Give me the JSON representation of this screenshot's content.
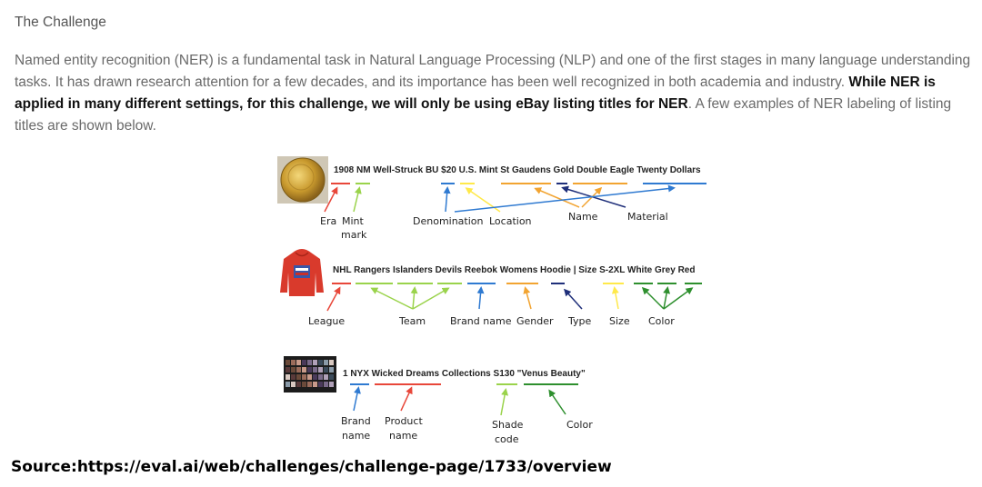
{
  "heading": "The Challenge",
  "paragraph": {
    "part1": "Named entity recognition (NER) is a fundamental task in Natural Language Processing (NLP) and one of the first stages in many language understanding tasks. It has drawn research attention for a few decades, and its importance has been well recognized in both academia and industry. ",
    "bold": "While NER is applied in many different settings, for this challenge, we will only be using eBay listing titles for NER",
    "part2": ". A few examples of NER labeling of listing titles are shown below."
  },
  "examples": [
    {
      "image": "gold-coin",
      "title": "1908 NM Well-Struck BU $20 U.S. Mint St Gaudens Gold Double Eagle Twenty Dollars",
      "labels": [
        "Era",
        "Mint",
        "mark",
        "Denomination",
        "Location",
        "Name",
        "Material"
      ]
    },
    {
      "image": "red-hoodie",
      "title": "NHL Rangers Islanders Devils Reebok Womens Hoodie | Size S-2XL White Grey Red",
      "labels": [
        "League",
        "Team",
        "Brand name",
        "Gender",
        "Type",
        "Size",
        "Color"
      ]
    },
    {
      "image": "eyeshadow-palette",
      "title": "1 NYX Wicked Dreams Collections S130 \"Venus Beauty\"",
      "labels": [
        "Brand",
        "name",
        "Product",
        "name",
        "Shade",
        "code",
        "Color"
      ]
    }
  ],
  "colors": {
    "red": "#e8473a",
    "light_green": "#9ad34b",
    "blue": "#2f7ad1",
    "yellow": "#ffe94a",
    "orange": "#f2a431",
    "navy": "#1f2f7a",
    "dark_green": "#2e8f2e"
  },
  "source": "Source:https://eval.ai/web/challenges/challenge-page/1733/overview"
}
